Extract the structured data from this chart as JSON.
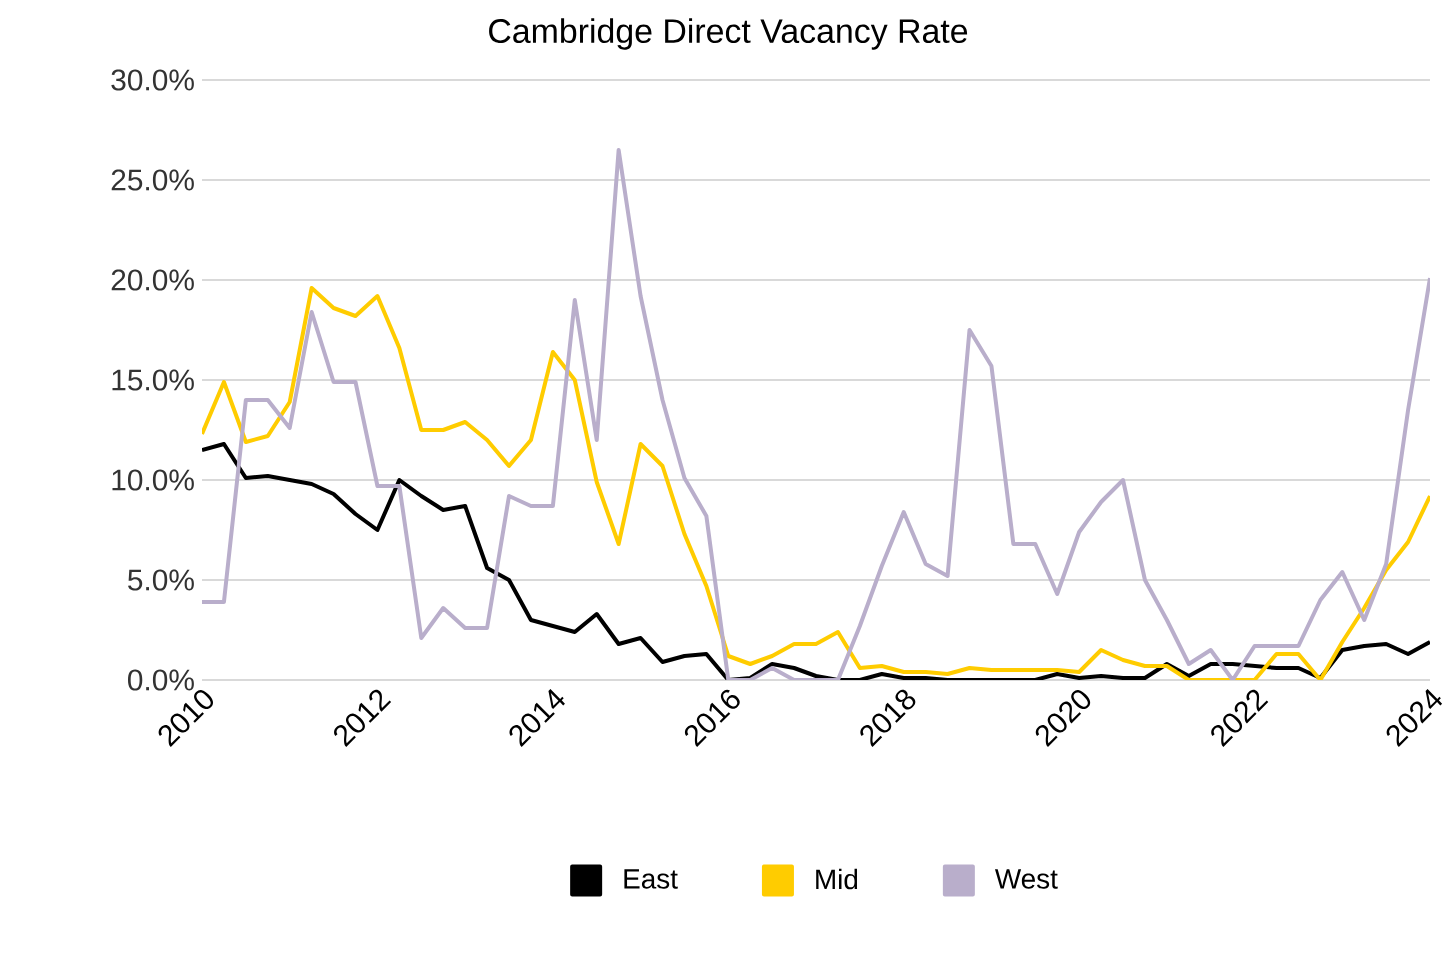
{
  "chart_data": {
    "type": "line",
    "title": "Cambridge Direct Vacancy Rate",
    "x": [
      2010,
      2010.25,
      2010.5,
      2010.75,
      2011,
      2011.25,
      2011.5,
      2011.75,
      2012,
      2012.25,
      2012.5,
      2012.75,
      2013,
      2013.25,
      2013.5,
      2013.75,
      2014,
      2014.25,
      2014.5,
      2014.75,
      2015,
      2015.25,
      2015.5,
      2015.75,
      2016,
      2016.25,
      2016.5,
      2016.75,
      2017,
      2017.25,
      2017.5,
      2017.75,
      2018,
      2018.25,
      2018.5,
      2018.75,
      2019,
      2019.25,
      2019.5,
      2019.75,
      2020,
      2020.25,
      2020.5,
      2020.75,
      2021,
      2021.25,
      2021.5,
      2021.75,
      2022,
      2022.25,
      2022.5,
      2022.75,
      2023,
      2023.25,
      2023.5,
      2023.75,
      2024
    ],
    "series": [
      {
        "name": "East",
        "color": "#000000",
        "values": [
          11.5,
          11.8,
          10.1,
          10.2,
          10.0,
          9.8,
          9.3,
          8.3,
          7.5,
          10.0,
          9.2,
          8.5,
          8.7,
          5.6,
          5.0,
          3.0,
          2.7,
          2.4,
          3.3,
          1.8,
          2.1,
          0.9,
          1.2,
          1.3,
          0.0,
          0.1,
          0.8,
          0.6,
          0.2,
          0.0,
          0.0,
          0.3,
          0.1,
          0.1,
          0.0,
          0.0,
          0.0,
          0.0,
          0.0,
          0.3,
          0.1,
          0.2,
          0.1,
          0.1,
          0.8,
          0.2,
          0.8,
          0.8,
          0.7,
          0.6,
          0.6,
          0.1,
          1.5,
          1.7,
          1.8,
          1.3,
          1.9
        ]
      },
      {
        "name": "Mid",
        "color": "#ffcc00",
        "values": [
          12.3,
          14.9,
          11.9,
          12.2,
          13.9,
          19.6,
          18.6,
          18.2,
          19.2,
          16.6,
          12.5,
          12.5,
          12.9,
          12.0,
          10.7,
          12.0,
          16.4,
          15.0,
          9.9,
          6.8,
          11.8,
          10.7,
          7.3,
          4.7,
          1.2,
          0.8,
          1.2,
          1.8,
          1.8,
          2.4,
          0.6,
          0.7,
          0.4,
          0.4,
          0.3,
          0.6,
          0.5,
          0.5,
          0.5,
          0.5,
          0.4,
          1.5,
          1.0,
          0.7,
          0.7,
          0.0,
          0.0,
          0.0,
          0.0,
          1.3,
          1.3,
          0.0,
          1.9,
          3.6,
          5.5,
          6.9,
          9.2
        ]
      },
      {
        "name": "West",
        "color": "#b9aecb",
        "values": [
          3.9,
          3.9,
          14.0,
          14.0,
          12.6,
          18.4,
          14.9,
          14.9,
          9.7,
          9.7,
          2.1,
          3.6,
          2.6,
          2.6,
          9.2,
          8.7,
          8.7,
          19.0,
          12.0,
          26.5,
          19.2,
          14.0,
          10.1,
          8.2,
          0.0,
          0.0,
          0.6,
          0.0,
          0.0,
          0.0,
          2.7,
          5.7,
          8.4,
          5.8,
          5.2,
          17.5,
          15.7,
          6.8,
          6.8,
          4.3,
          7.4,
          8.9,
          10.0,
          5.0,
          3.0,
          0.8,
          1.5,
          0.0,
          1.7,
          1.7,
          1.7,
          4.0,
          5.4,
          3.0,
          5.8,
          13.5,
          20.1
        ]
      }
    ],
    "xlim": [
      2010,
      2024
    ],
    "xticks": [
      2010,
      2012,
      2014,
      2016,
      2018,
      2020,
      2022,
      2024
    ],
    "ylim": [
      0,
      30
    ],
    "yticks": [
      {
        "value": 0,
        "label": "0.0%"
      },
      {
        "value": 5,
        "label": "5.0%"
      },
      {
        "value": 10,
        "label": "10.0%"
      },
      {
        "value": 15,
        "label": "15.0%"
      },
      {
        "value": 20,
        "label": "20.0%"
      },
      {
        "value": 25,
        "label": "25.0%"
      },
      {
        "value": 30,
        "label": "30.0%"
      }
    ],
    "grid": "y",
    "legend": "bottom",
    "marker": "none",
    "line_style": "solid"
  }
}
